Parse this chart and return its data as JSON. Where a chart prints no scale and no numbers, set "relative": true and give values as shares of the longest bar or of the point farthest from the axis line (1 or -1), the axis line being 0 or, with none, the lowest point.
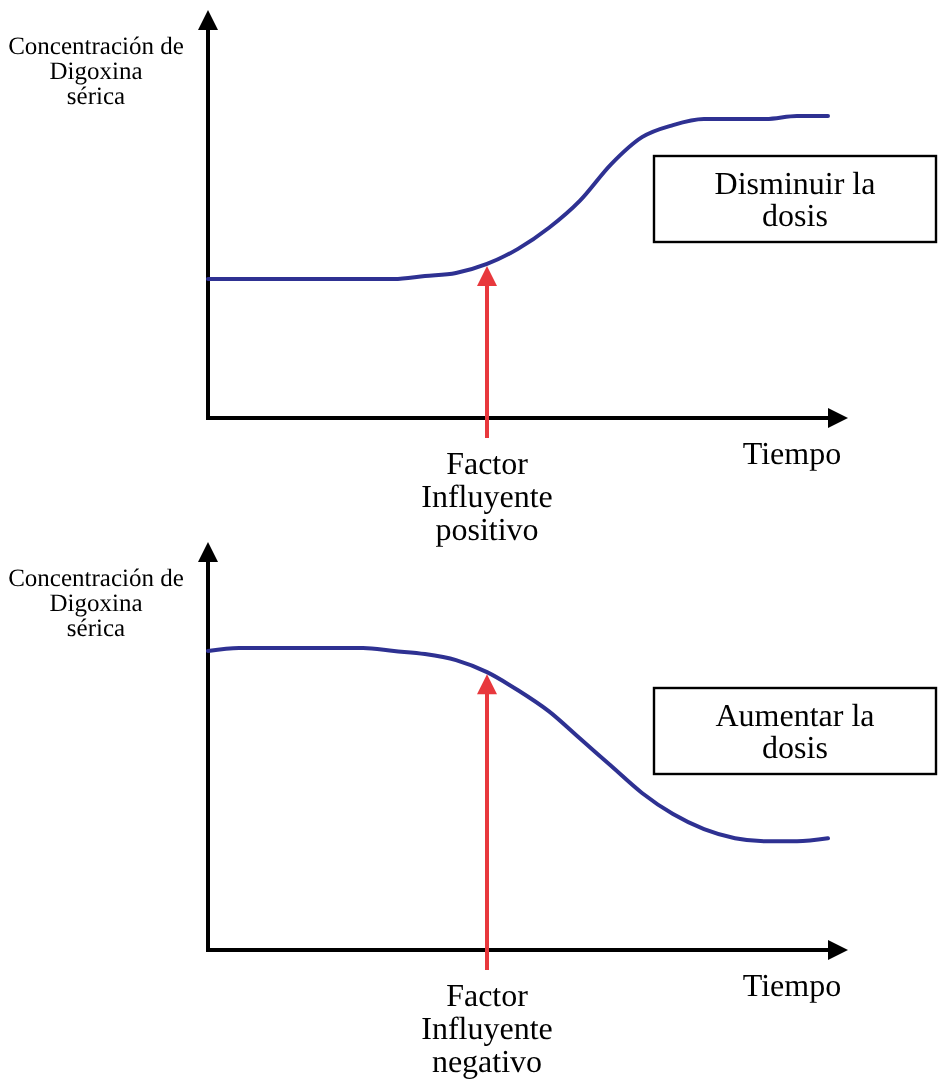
{
  "chart_data": [
    {
      "type": "line",
      "ylabel": "Concentración de\nDigoxina\nsérica",
      "xlabel": "Tiempo",
      "relative": true,
      "categories": [
        null,
        null,
        null,
        null,
        null,
        null,
        null,
        null,
        null,
        null,
        null,
        null,
        null,
        null,
        null,
        null,
        null,
        null,
        null,
        null,
        null
      ],
      "series": [
        {
          "color": "#2e3192",
          "values": [
            0.46,
            0.46,
            0.46,
            0.46,
            0.46,
            0.46,
            0.46,
            0.47,
            0.48,
            0.51,
            0.56,
            0.63,
            0.72,
            0.84,
            0.93,
            0.97,
            0.99,
            0.99,
            0.99,
            1,
            1
          ]
        }
      ],
      "annotations": [
        {
          "text": "Factor\nInfluyente\npositivo",
          "y": 0.51
        },
        "Disminuir la\ndosis"
      ]
    },
    {
      "type": "line",
      "ylabel": "Concentración de\nDigoxina\nsérica",
      "xlabel": "Tiempo",
      "relative": true,
      "categories": [
        null,
        null,
        null,
        null,
        null,
        null,
        null,
        null,
        null,
        null,
        null,
        null,
        null,
        null,
        null,
        null,
        null,
        null,
        null,
        null,
        null
      ],
      "series": [
        {
          "color": "#2e3192",
          "values": [
            0.99,
            1,
            1,
            1,
            1,
            1,
            0.99,
            0.98,
            0.96,
            0.92,
            0.86,
            0.79,
            0.7,
            0.61,
            0.52,
            0.45,
            0.4,
            0.37,
            0.36,
            0.36,
            0.37
          ]
        }
      ],
      "annotations": [
        {
          "text": "Factor\nInfluyente\nnegativo",
          "y": 0.92
        },
        "Aumentar la\ndosis"
      ]
    }
  ]
}
